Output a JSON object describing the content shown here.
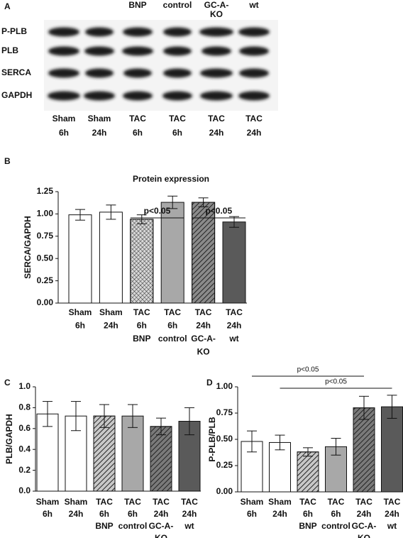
{
  "panel_labels": [
    "A",
    "B",
    "C",
    "D"
  ],
  "blot": {
    "top_labels": [
      null,
      null,
      [
        "BNP"
      ],
      [
        "control"
      ],
      [
        "GC-A-",
        "KO"
      ],
      [
        "wt"
      ]
    ],
    "rows": [
      "P-PLB",
      "PLB",
      "SERCA",
      "GAPDH"
    ],
    "lanes": [
      [
        "Sham",
        "6h"
      ],
      [
        "Sham",
        "24h"
      ],
      [
        "TAC",
        "6h"
      ],
      [
        "TAC",
        "6h"
      ],
      [
        "TAC",
        "24h"
      ],
      [
        "TAC",
        "24h"
      ]
    ]
  },
  "chart_data": [
    {
      "type": "bar",
      "title": "Protein expression",
      "ylabel": "SERCA/GAPDH",
      "categories": [
        [
          "Sham",
          "6h"
        ],
        [
          "Sham",
          "24h"
        ],
        [
          "TAC",
          "6h",
          "BNP"
        ],
        [
          "TAC",
          "6h",
          "control"
        ],
        [
          "TAC",
          "24h",
          "GC-A-",
          "KO"
        ],
        [
          "TAC",
          "24h",
          "wt"
        ]
      ],
      "values": [
        0.99,
        1.02,
        0.94,
        1.13,
        1.13,
        0.91
      ],
      "errors": [
        0.06,
        0.08,
        0.05,
        0.07,
        0.05,
        0.06
      ],
      "colors": [
        "#ffffff",
        "#ffffff",
        "#d8d8d8",
        "#a8a8a8",
        "#8a8a8a",
        "#5a5a5a"
      ],
      "hatch": [
        "none",
        "none",
        "cross",
        "none",
        "diagonal",
        "none"
      ],
      "ylim": [
        0,
        1.25
      ],
      "yticks": [
        {
          "value": 0,
          "label": "0.00"
        },
        0.25,
        {
          "value": 0.5,
          "label": "0.50"
        },
        0.75,
        {
          "value": 1,
          "label": "1.00"
        },
        1.25
      ],
      "annotations": [
        {
          "text": "p<0.05",
          "between": [
            2,
            3
          ]
        },
        {
          "text": "p<0.05",
          "between": [
            4,
            5
          ]
        }
      ]
    },
    {
      "type": "bar",
      "ylabel": "PLB/GAPDH",
      "categories": [
        [
          "Sham",
          "6h"
        ],
        [
          "Sham",
          "24h"
        ],
        [
          "TAC",
          "6h",
          "BNP"
        ],
        [
          "TAC",
          "6h",
          "control"
        ],
        [
          "TAC",
          "24h",
          "GC-A-",
          "KO"
        ],
        [
          "TAC",
          "24h",
          "wt"
        ]
      ],
      "values": [
        0.74,
        0.72,
        0.72,
        0.72,
        0.62,
        0.67
      ],
      "errors": [
        0.12,
        0.14,
        0.11,
        0.11,
        0.08,
        0.13
      ],
      "colors": [
        "#ffffff",
        "#ffffff",
        "#c8c8c8",
        "#a8a8a8",
        "#7a7a7a",
        "#5a5a5a"
      ],
      "hatch": [
        "none",
        "none",
        "diagonal",
        "none",
        "diagonal",
        "none"
      ],
      "ylim": [
        0,
        1
      ],
      "yticks": [
        {
          "value": 0,
          "label": "0.0"
        },
        0.2,
        0.4,
        0.6,
        0.8,
        {
          "value": 1,
          "label": "1.0"
        }
      ],
      "annotations": []
    },
    {
      "type": "bar",
      "ylabel": "P-PLB/PLB",
      "categories": [
        [
          "Sham",
          "6h"
        ],
        [
          "Sham",
          "24h"
        ],
        [
          "TAC",
          "6h",
          "BNP"
        ],
        [
          "TAC",
          "6h",
          "control"
        ],
        [
          "TAC",
          "24h",
          "GC-A-",
          "KO"
        ],
        [
          "TAC",
          "24h",
          "wt"
        ]
      ],
      "values": [
        0.48,
        0.47,
        0.38,
        0.43,
        0.8,
        0.81
      ],
      "errors": [
        0.1,
        0.07,
        0.04,
        0.08,
        0.11,
        0.11
      ],
      "colors": [
        "#ffffff",
        "#ffffff",
        "#c8c8c8",
        "#a8a8a8",
        "#7a7a7a",
        "#5a5a5a"
      ],
      "hatch": [
        "none",
        "none",
        "diagonal",
        "none",
        "diagonal",
        "none"
      ],
      "ylim": [
        0,
        1
      ],
      "yticks": [
        {
          "value": 0,
          "label": "0.00"
        },
        0.25,
        {
          "value": 0.5,
          "label": "0.50"
        },
        0.75,
        {
          "value": 1,
          "label": "1.00"
        }
      ],
      "annotations": [
        {
          "text": "p<0.05",
          "between": [
            0,
            4
          ]
        },
        {
          "text": "p<0.05",
          "between": [
            1,
            5
          ]
        }
      ]
    }
  ]
}
